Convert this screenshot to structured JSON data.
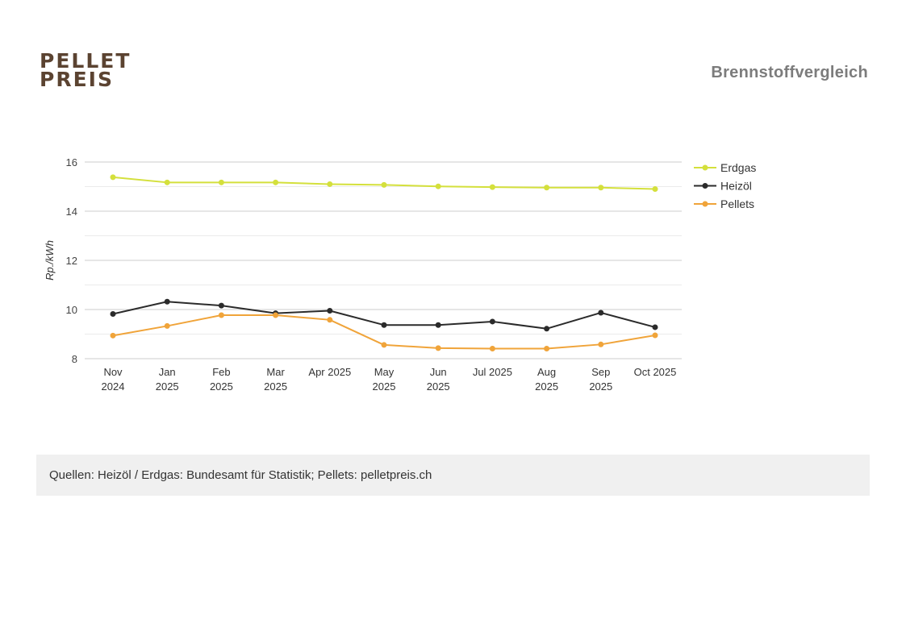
{
  "header": {
    "logo_line1": "PELLET",
    "logo_line2": "PREIS",
    "title": "Brennstoffvergleich"
  },
  "footer": {
    "source": "Quellen: Heizöl / Erdgas: Bundesamt für Statistik; Pellets: pelletpreis.ch"
  },
  "chart_data": {
    "type": "line",
    "title": "",
    "xlabel": "",
    "ylabel": "Rp./kWh",
    "ylim": [
      8,
      16
    ],
    "yticks": [
      8,
      10,
      12,
      14,
      16
    ],
    "grid": true,
    "legend_position": "top-right",
    "categories": [
      [
        "Nov",
        "2024"
      ],
      [
        "Jan",
        "2025"
      ],
      [
        "Feb",
        "2025"
      ],
      [
        "Mar",
        "2025"
      ],
      [
        "Apr 2025"
      ],
      [
        "May",
        "2025"
      ],
      [
        "Jun",
        "2025"
      ],
      [
        "Jul 2025"
      ],
      [
        "Aug",
        "2025"
      ],
      [
        "Sep",
        "2025"
      ],
      [
        "Oct 2025"
      ]
    ],
    "series": [
      {
        "name": "Erdgas",
        "color": "#d4e03c",
        "values": [
          15.38,
          15.17,
          15.17,
          15.17,
          15.1,
          15.07,
          15.01,
          14.98,
          14.96,
          14.96,
          14.9
        ]
      },
      {
        "name": "Heizöl",
        "color": "#2b2b2b",
        "values": [
          9.82,
          10.32,
          10.16,
          9.85,
          9.95,
          9.37,
          9.37,
          9.51,
          9.22,
          9.87,
          9.28
        ]
      },
      {
        "name": "Pellets",
        "color": "#f0a43a",
        "values": [
          8.94,
          9.33,
          9.77,
          9.77,
          9.58,
          8.56,
          8.43,
          8.41,
          8.41,
          8.58,
          8.95
        ]
      }
    ]
  }
}
